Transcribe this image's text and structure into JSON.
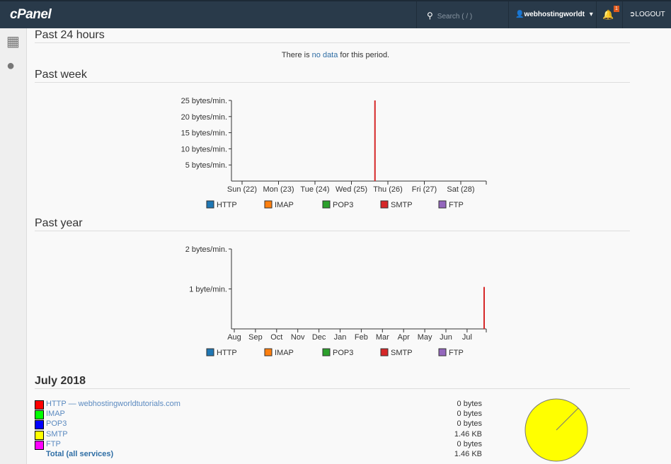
{
  "header": {
    "logo": "cPanel",
    "search_placeholder": "Search ( / )",
    "user": "webhostingworldt",
    "notification_count": "1",
    "logout": "LOGOUT"
  },
  "sidebar": {
    "items": [
      {
        "icon": "grid-icon"
      },
      {
        "icon": "users-icon"
      }
    ]
  },
  "sections": {
    "day": {
      "title": "Past 24 hours",
      "nodata_pre": "There is ",
      "nodata_mid": "no data",
      "nodata_post": " for this period."
    },
    "week": {
      "title": "Past week"
    },
    "year": {
      "title": "Past year"
    },
    "month": {
      "title": "July 2018"
    }
  },
  "legend": [
    {
      "name": "HTTP",
      "color": "#1f77b4"
    },
    {
      "name": "IMAP",
      "color": "#ff7f0e"
    },
    {
      "name": "POP3",
      "color": "#2ca02c"
    },
    {
      "name": "SMTP",
      "color": "#d62728"
    },
    {
      "name": "FTP",
      "color": "#9467bd"
    }
  ],
  "chart_data": [
    {
      "type": "bar",
      "title": "Past week",
      "x_ticks": [
        "Sun (22)",
        "Mon (23)",
        "Tue (24)",
        "Wed (25)",
        "Thu (26)",
        "Fri (27)",
        "Sat (28)"
      ],
      "y_ticks": [
        "5 bytes/min.",
        "10 bytes/min.",
        "15 bytes/min.",
        "20 bytes/min.",
        "25 bytes/min."
      ],
      "ylim": [
        0,
        25
      ],
      "series": [
        {
          "name": "SMTP",
          "color": "#d62728",
          "points": [
            {
              "x": "2018-07-25T15:30",
              "y": 25
            }
          ]
        }
      ]
    },
    {
      "type": "bar",
      "title": "Past year",
      "x_ticks": [
        "Aug",
        "Sep",
        "Oct",
        "Nov",
        "Dec",
        "Jan",
        "Feb",
        "Mar",
        "Apr",
        "May",
        "Jun",
        "Jul"
      ],
      "y_ticks": [
        "1 byte/min.",
        "2 bytes/min."
      ],
      "ylim": [
        0,
        2
      ],
      "series": [
        {
          "name": "SMTP",
          "color": "#d62728",
          "points": [
            {
              "x": "2018-07-26",
              "y": 1.05
            }
          ]
        }
      ]
    },
    {
      "type": "pie",
      "title": "July 2018",
      "slices": [
        {
          "label": "HTTP — webhostingworldtutorials.com",
          "value_text": "0 bytes",
          "value": 0,
          "color": "#ff0000"
        },
        {
          "label": "IMAP",
          "value_text": "0 bytes",
          "value": 0,
          "color": "#00ff00"
        },
        {
          "label": "POP3",
          "value_text": "0 bytes",
          "value": 0,
          "color": "#0000ff"
        },
        {
          "label": "SMTP",
          "value_text": "1.46 KB",
          "value": 1.46,
          "color": "#ffff00"
        },
        {
          "label": "FTP",
          "value_text": "0 bytes",
          "value": 0,
          "color": "#ff00ff"
        }
      ],
      "total": {
        "label": "Total (all services)",
        "value_text": "1.46 KB"
      }
    }
  ]
}
